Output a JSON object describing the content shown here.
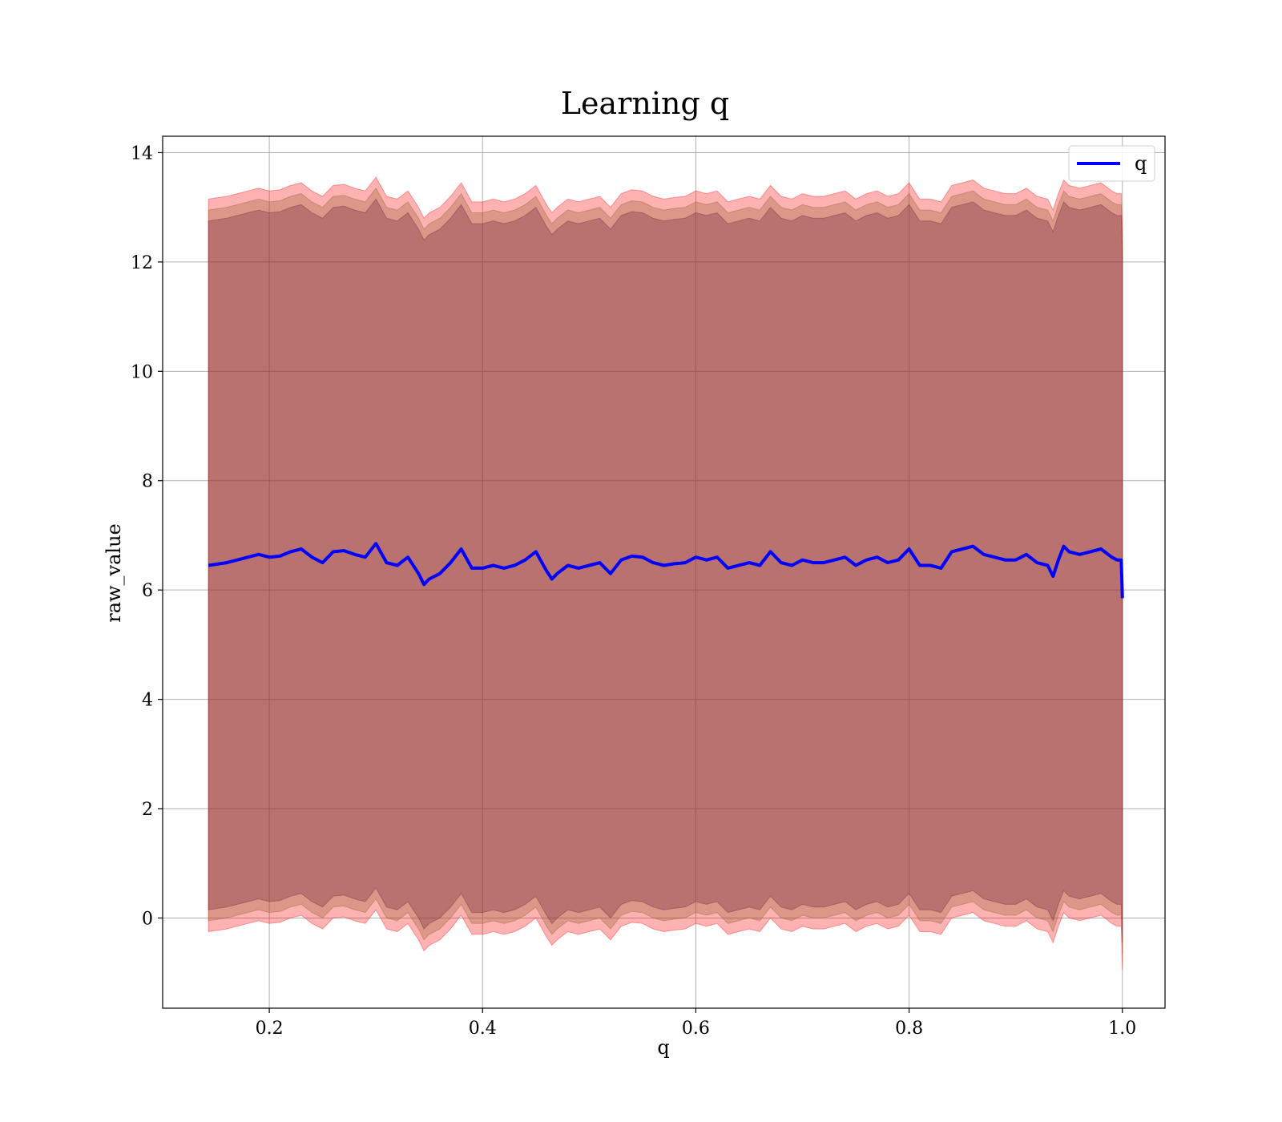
{
  "chart_data": {
    "type": "line",
    "title": "Learning q",
    "xlabel": "q",
    "ylabel": "raw_value",
    "xlim": [
      0.1,
      1.04
    ],
    "ylim": [
      -1.65,
      14.3
    ],
    "xticks": [
      0.2,
      0.4,
      0.6,
      0.8,
      1.0
    ],
    "xtick_labels": [
      "0.2",
      "0.4",
      "0.6",
      "0.8",
      "1.0"
    ],
    "yticks": [
      0,
      2,
      4,
      6,
      8,
      10,
      12,
      14
    ],
    "ytick_labels": [
      "0",
      "2",
      "4",
      "6",
      "8",
      "10",
      "12",
      "14"
    ],
    "grid": true,
    "legend": {
      "position": "top-right",
      "entries": [
        "q"
      ]
    },
    "colors": {
      "line": "#0000ff",
      "band_outer": "#ff0000",
      "band_mid": "#8b5a2b",
      "band_inner": "#6b1f35"
    },
    "series": [
      {
        "name": "q",
        "style": "line",
        "x": [
          0.143,
          0.16,
          0.17,
          0.18,
          0.19,
          0.2,
          0.21,
          0.22,
          0.23,
          0.24,
          0.25,
          0.26,
          0.27,
          0.28,
          0.29,
          0.3,
          0.31,
          0.32,
          0.33,
          0.34,
          0.345,
          0.35,
          0.36,
          0.37,
          0.38,
          0.39,
          0.4,
          0.41,
          0.42,
          0.43,
          0.44,
          0.45,
          0.46,
          0.465,
          0.47,
          0.48,
          0.49,
          0.5,
          0.51,
          0.52,
          0.53,
          0.54,
          0.55,
          0.56,
          0.57,
          0.58,
          0.59,
          0.6,
          0.61,
          0.62,
          0.63,
          0.64,
          0.65,
          0.66,
          0.67,
          0.68,
          0.69,
          0.7,
          0.71,
          0.72,
          0.73,
          0.74,
          0.75,
          0.76,
          0.77,
          0.78,
          0.79,
          0.8,
          0.81,
          0.82,
          0.83,
          0.84,
          0.85,
          0.86,
          0.87,
          0.88,
          0.89,
          0.9,
          0.91,
          0.92,
          0.93,
          0.935,
          0.94,
          0.945,
          0.95,
          0.96,
          0.97,
          0.98,
          0.99,
          0.995,
          0.999,
          1.0
        ],
        "y": [
          6.45,
          6.5,
          6.55,
          6.6,
          6.65,
          6.6,
          6.62,
          6.7,
          6.75,
          6.6,
          6.5,
          6.7,
          6.72,
          6.65,
          6.6,
          6.85,
          6.5,
          6.45,
          6.6,
          6.3,
          6.1,
          6.2,
          6.3,
          6.5,
          6.75,
          6.4,
          6.4,
          6.45,
          6.4,
          6.45,
          6.55,
          6.7,
          6.35,
          6.2,
          6.3,
          6.45,
          6.4,
          6.45,
          6.5,
          6.3,
          6.55,
          6.62,
          6.6,
          6.5,
          6.45,
          6.48,
          6.5,
          6.6,
          6.55,
          6.6,
          6.4,
          6.45,
          6.5,
          6.45,
          6.7,
          6.5,
          6.45,
          6.55,
          6.5,
          6.5,
          6.55,
          6.6,
          6.45,
          6.55,
          6.6,
          6.5,
          6.55,
          6.75,
          6.45,
          6.45,
          6.4,
          6.7,
          6.75,
          6.8,
          6.65,
          6.6,
          6.55,
          6.55,
          6.65,
          6.5,
          6.45,
          6.25,
          6.55,
          6.8,
          6.7,
          6.65,
          6.7,
          6.75,
          6.6,
          6.55,
          6.55,
          5.85
        ]
      },
      {
        "name": "",
        "style": "band",
        "color": "#ff0000",
        "x": [
          0.143,
          0.16,
          0.17,
          0.18,
          0.19,
          0.2,
          0.21,
          0.22,
          0.23,
          0.24,
          0.25,
          0.26,
          0.27,
          0.28,
          0.29,
          0.3,
          0.31,
          0.32,
          0.33,
          0.34,
          0.345,
          0.35,
          0.36,
          0.37,
          0.38,
          0.39,
          0.4,
          0.41,
          0.42,
          0.43,
          0.44,
          0.45,
          0.46,
          0.465,
          0.47,
          0.48,
          0.49,
          0.5,
          0.51,
          0.52,
          0.53,
          0.54,
          0.55,
          0.56,
          0.57,
          0.58,
          0.59,
          0.6,
          0.61,
          0.62,
          0.63,
          0.64,
          0.65,
          0.66,
          0.67,
          0.68,
          0.69,
          0.7,
          0.71,
          0.72,
          0.73,
          0.74,
          0.75,
          0.76,
          0.77,
          0.78,
          0.79,
          0.8,
          0.81,
          0.82,
          0.83,
          0.84,
          0.85,
          0.86,
          0.87,
          0.88,
          0.89,
          0.9,
          0.91,
          0.92,
          0.93,
          0.935,
          0.94,
          0.945,
          0.95,
          0.96,
          0.97,
          0.98,
          0.99,
          0.995,
          0.999,
          1.0
        ],
        "upper": [
          13.15,
          13.2,
          13.25,
          13.3,
          13.35,
          13.3,
          13.32,
          13.4,
          13.45,
          13.3,
          13.2,
          13.4,
          13.42,
          13.35,
          13.3,
          13.55,
          13.2,
          13.15,
          13.3,
          13.0,
          12.8,
          12.9,
          13.0,
          13.2,
          13.45,
          13.1,
          13.1,
          13.15,
          13.1,
          13.15,
          13.25,
          13.4,
          13.05,
          12.9,
          13.0,
          13.15,
          13.1,
          13.15,
          13.2,
          13.0,
          13.25,
          13.32,
          13.3,
          13.2,
          13.15,
          13.18,
          13.2,
          13.3,
          13.25,
          13.3,
          13.1,
          13.15,
          13.2,
          13.15,
          13.4,
          13.2,
          13.15,
          13.25,
          13.2,
          13.2,
          13.25,
          13.3,
          13.15,
          13.25,
          13.3,
          13.2,
          13.25,
          13.45,
          13.15,
          13.15,
          13.1,
          13.4,
          13.45,
          13.5,
          13.35,
          13.3,
          13.25,
          13.25,
          13.35,
          13.2,
          13.15,
          12.95,
          13.25,
          13.5,
          13.4,
          13.35,
          13.4,
          13.45,
          13.3,
          13.25,
          13.25,
          12.55
        ],
        "lower": [
          -0.25,
          -0.2,
          -0.15,
          -0.1,
          -0.05,
          -0.1,
          -0.08,
          0.0,
          0.05,
          -0.1,
          -0.2,
          0.0,
          0.02,
          -0.05,
          -0.1,
          0.15,
          -0.2,
          -0.25,
          -0.1,
          -0.4,
          -0.6,
          -0.5,
          -0.4,
          -0.2,
          0.05,
          -0.3,
          -0.3,
          -0.25,
          -0.3,
          -0.25,
          -0.15,
          0.0,
          -0.35,
          -0.5,
          -0.4,
          -0.25,
          -0.3,
          -0.25,
          -0.2,
          -0.4,
          -0.15,
          -0.08,
          -0.1,
          -0.2,
          -0.25,
          -0.22,
          -0.2,
          -0.1,
          -0.15,
          -0.1,
          -0.3,
          -0.25,
          -0.2,
          -0.25,
          0.0,
          -0.2,
          -0.25,
          -0.15,
          -0.2,
          -0.2,
          -0.15,
          -0.1,
          -0.25,
          -0.15,
          -0.1,
          -0.2,
          -0.15,
          0.05,
          -0.25,
          -0.25,
          -0.3,
          0.0,
          0.05,
          0.1,
          -0.05,
          -0.1,
          -0.15,
          -0.15,
          -0.05,
          -0.2,
          -0.25,
          -0.45,
          -0.15,
          0.1,
          0.0,
          -0.05,
          0.0,
          0.05,
          -0.1,
          -0.15,
          -0.15,
          -0.95
        ]
      },
      {
        "name": "",
        "style": "band",
        "color": "#8b5a2b",
        "x": [
          0.143,
          0.16,
          0.17,
          0.18,
          0.19,
          0.2,
          0.21,
          0.22,
          0.23,
          0.24,
          0.25,
          0.26,
          0.27,
          0.28,
          0.29,
          0.3,
          0.31,
          0.32,
          0.33,
          0.34,
          0.345,
          0.35,
          0.36,
          0.37,
          0.38,
          0.39,
          0.4,
          0.41,
          0.42,
          0.43,
          0.44,
          0.45,
          0.46,
          0.465,
          0.47,
          0.48,
          0.49,
          0.5,
          0.51,
          0.52,
          0.53,
          0.54,
          0.55,
          0.56,
          0.57,
          0.58,
          0.59,
          0.6,
          0.61,
          0.62,
          0.63,
          0.64,
          0.65,
          0.66,
          0.67,
          0.68,
          0.69,
          0.7,
          0.71,
          0.72,
          0.73,
          0.74,
          0.75,
          0.76,
          0.77,
          0.78,
          0.79,
          0.8,
          0.81,
          0.82,
          0.83,
          0.84,
          0.85,
          0.86,
          0.87,
          0.88,
          0.89,
          0.9,
          0.91,
          0.92,
          0.93,
          0.935,
          0.94,
          0.945,
          0.95,
          0.96,
          0.97,
          0.98,
          0.99,
          0.995,
          0.999,
          1.0
        ],
        "upper": [
          12.95,
          13.0,
          13.05,
          13.1,
          13.15,
          13.1,
          13.12,
          13.2,
          13.25,
          13.1,
          13.0,
          13.2,
          13.22,
          13.15,
          13.1,
          13.35,
          13.0,
          12.95,
          13.1,
          12.8,
          12.6,
          12.7,
          12.8,
          13.0,
          13.25,
          12.9,
          12.9,
          12.95,
          12.9,
          12.95,
          13.05,
          13.2,
          12.85,
          12.7,
          12.8,
          12.95,
          12.9,
          12.95,
          13.0,
          12.8,
          13.05,
          13.12,
          13.1,
          13.0,
          12.95,
          12.98,
          13.0,
          13.1,
          13.05,
          13.1,
          12.9,
          12.95,
          13.0,
          12.95,
          13.2,
          13.0,
          12.95,
          13.05,
          13.0,
          13.0,
          13.05,
          13.1,
          12.95,
          13.05,
          13.1,
          13.0,
          13.05,
          13.25,
          12.95,
          12.95,
          12.9,
          13.2,
          13.25,
          13.3,
          13.15,
          13.1,
          13.05,
          13.05,
          13.15,
          13.0,
          12.95,
          12.75,
          13.05,
          13.3,
          13.2,
          13.15,
          13.2,
          13.25,
          13.1,
          13.05,
          13.05,
          12.35
        ],
        "lower": [
          -0.05,
          0.0,
          0.05,
          0.1,
          0.15,
          0.1,
          0.12,
          0.2,
          0.25,
          0.1,
          0.0,
          0.2,
          0.22,
          0.15,
          0.1,
          0.35,
          0.0,
          -0.05,
          0.1,
          -0.2,
          -0.4,
          -0.3,
          -0.2,
          0.0,
          0.25,
          -0.1,
          -0.1,
          -0.05,
          -0.1,
          -0.05,
          0.05,
          0.2,
          -0.15,
          -0.3,
          -0.2,
          -0.05,
          -0.1,
          -0.05,
          0.0,
          -0.2,
          0.05,
          0.12,
          0.1,
          0.0,
          -0.05,
          -0.02,
          0.0,
          0.1,
          0.05,
          0.1,
          -0.1,
          -0.05,
          0.0,
          -0.05,
          0.2,
          0.0,
          -0.05,
          0.05,
          0.0,
          0.0,
          0.05,
          0.1,
          -0.05,
          0.05,
          0.1,
          0.0,
          0.05,
          0.25,
          -0.05,
          -0.05,
          -0.1,
          0.2,
          0.25,
          0.3,
          0.15,
          0.1,
          0.05,
          0.05,
          0.15,
          0.0,
          -0.05,
          -0.25,
          0.05,
          0.3,
          0.2,
          0.15,
          0.2,
          0.25,
          0.1,
          0.05,
          0.05,
          -0.65
        ]
      },
      {
        "name": "",
        "style": "band",
        "color": "#6b1f35",
        "x": [
          0.143,
          0.16,
          0.17,
          0.18,
          0.19,
          0.2,
          0.21,
          0.22,
          0.23,
          0.24,
          0.25,
          0.26,
          0.27,
          0.28,
          0.29,
          0.3,
          0.31,
          0.32,
          0.33,
          0.34,
          0.345,
          0.35,
          0.36,
          0.37,
          0.38,
          0.39,
          0.4,
          0.41,
          0.42,
          0.43,
          0.44,
          0.45,
          0.46,
          0.465,
          0.47,
          0.48,
          0.49,
          0.5,
          0.51,
          0.52,
          0.53,
          0.54,
          0.55,
          0.56,
          0.57,
          0.58,
          0.59,
          0.6,
          0.61,
          0.62,
          0.63,
          0.64,
          0.65,
          0.66,
          0.67,
          0.68,
          0.69,
          0.7,
          0.71,
          0.72,
          0.73,
          0.74,
          0.75,
          0.76,
          0.77,
          0.78,
          0.79,
          0.8,
          0.81,
          0.82,
          0.83,
          0.84,
          0.85,
          0.86,
          0.87,
          0.88,
          0.89,
          0.9,
          0.91,
          0.92,
          0.93,
          0.935,
          0.94,
          0.945,
          0.95,
          0.96,
          0.97,
          0.98,
          0.99,
          0.995,
          0.999,
          1.0
        ],
        "upper": [
          12.75,
          12.8,
          12.85,
          12.9,
          12.95,
          12.9,
          12.92,
          13.0,
          13.05,
          12.9,
          12.8,
          13.0,
          13.02,
          12.95,
          12.9,
          13.15,
          12.8,
          12.75,
          12.9,
          12.6,
          12.4,
          12.5,
          12.6,
          12.8,
          13.05,
          12.7,
          12.7,
          12.75,
          12.7,
          12.75,
          12.85,
          13.0,
          12.65,
          12.5,
          12.6,
          12.75,
          12.7,
          12.75,
          12.8,
          12.6,
          12.85,
          12.92,
          12.9,
          12.8,
          12.75,
          12.78,
          12.8,
          12.9,
          12.85,
          12.9,
          12.7,
          12.75,
          12.8,
          12.75,
          13.0,
          12.8,
          12.75,
          12.85,
          12.8,
          12.8,
          12.85,
          12.9,
          12.75,
          12.85,
          12.9,
          12.8,
          12.85,
          13.05,
          12.75,
          12.75,
          12.7,
          13.0,
          13.05,
          13.1,
          12.95,
          12.9,
          12.85,
          12.85,
          12.95,
          12.8,
          12.75,
          12.55,
          12.85,
          13.1,
          13.0,
          12.95,
          13.0,
          13.05,
          12.9,
          12.85,
          12.85,
          12.15
        ],
        "lower": [
          0.15,
          0.2,
          0.25,
          0.3,
          0.35,
          0.3,
          0.32,
          0.4,
          0.45,
          0.3,
          0.2,
          0.4,
          0.42,
          0.35,
          0.3,
          0.55,
          0.2,
          0.15,
          0.3,
          0.0,
          -0.2,
          -0.1,
          0.0,
          0.2,
          0.45,
          0.1,
          0.1,
          0.15,
          0.1,
          0.15,
          0.25,
          0.4,
          0.05,
          -0.1,
          0.0,
          0.15,
          0.1,
          0.15,
          0.2,
          0.0,
          0.25,
          0.32,
          0.3,
          0.2,
          0.15,
          0.18,
          0.2,
          0.3,
          0.25,
          0.3,
          0.1,
          0.15,
          0.2,
          0.15,
          0.4,
          0.2,
          0.15,
          0.25,
          0.2,
          0.2,
          0.25,
          0.3,
          0.15,
          0.25,
          0.3,
          0.2,
          0.25,
          0.45,
          0.15,
          0.15,
          0.1,
          0.4,
          0.45,
          0.5,
          0.35,
          0.3,
          0.25,
          0.25,
          0.35,
          0.2,
          0.15,
          -0.05,
          0.25,
          0.5,
          0.4,
          0.35,
          0.4,
          0.45,
          0.3,
          0.25,
          0.25,
          -0.45
        ]
      }
    ]
  }
}
